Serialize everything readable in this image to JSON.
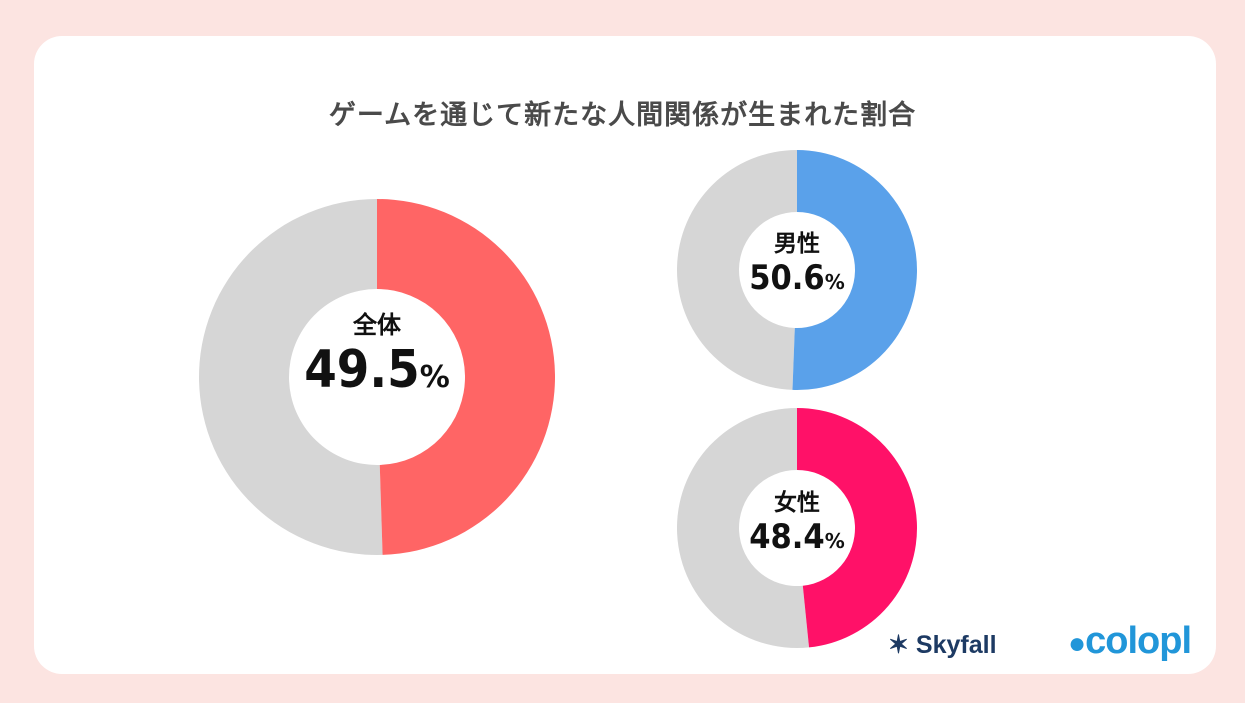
{
  "title": "ゲームを通じて新たな人間関係が生まれた割合",
  "colors": {
    "background": "#fce4e1",
    "card": "#ffffff",
    "rest": "#d6d6d6",
    "overall": "#ff6565",
    "male": "#5aa1ea",
    "female": "#ff1168"
  },
  "chart_data": [
    {
      "type": "pie",
      "name": "全体",
      "value": 49.5,
      "value_text": "49.5",
      "unit": "%",
      "color": "#ff6565"
    },
    {
      "type": "pie",
      "name": "男性",
      "value": 50.6,
      "value_text": "50.6",
      "unit": "%",
      "color": "#5aa1ea"
    },
    {
      "type": "pie",
      "name": "女性",
      "value": 48.4,
      "value_text": "48.4",
      "unit": "%",
      "color": "#ff1168"
    }
  ],
  "logos": {
    "skyfall": "Skyfall",
    "colopl": "colopl"
  }
}
